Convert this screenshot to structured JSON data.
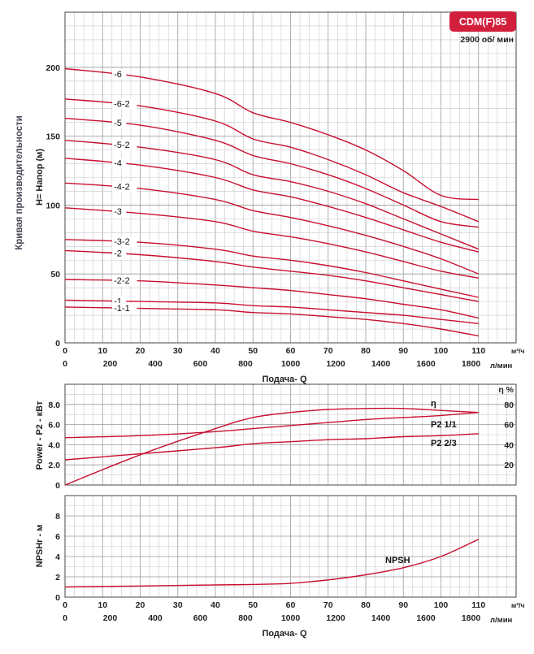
{
  "badge": {
    "model": "CDM(F)85",
    "speed": "2900 об/ мин",
    "color": "#d21f3c"
  },
  "side_title": "Кривая производительности",
  "flow_unit_m3h": "м³/ч",
  "flow_unit_lmin": "л/мин",
  "chart_data": [
    {
      "id": "head",
      "type": "line",
      "ylabel": "H= Напор (м)",
      "xlabel": "Подача- Q",
      "xlim": [
        0,
        110
      ],
      "ylim": [
        0,
        240
      ],
      "grid": true,
      "yticks": [
        0,
        50,
        100,
        150,
        200
      ],
      "x_ticks_m3h": [
        0,
        10,
        20,
        30,
        40,
        50,
        60,
        70,
        80,
        90,
        100,
        110
      ],
      "x_ticks_lmin": [
        0,
        200,
        400,
        600,
        800,
        1000,
        1200,
        1400,
        1600,
        1800
      ],
      "series": [
        {
          "name": "-6",
          "x": [
            0,
            20,
            40,
            50,
            60,
            70,
            80,
            90,
            100,
            110
          ],
          "y": [
            199,
            193,
            181,
            167,
            160,
            151,
            140,
            125,
            107,
            104
          ]
        },
        {
          "name": "-6-2",
          "x": [
            0,
            20,
            40,
            50,
            60,
            70,
            80,
            90,
            100,
            110
          ],
          "y": [
            177,
            172,
            161,
            148,
            142,
            133,
            122,
            109,
            99,
            88
          ]
        },
        {
          "name": "-5",
          "x": [
            0,
            20,
            40,
            50,
            60,
            70,
            80,
            90,
            100,
            110
          ],
          "y": [
            163,
            158,
            147,
            136,
            130,
            122,
            112,
            100,
            88,
            84
          ]
        },
        {
          "name": "-5-2",
          "x": [
            0,
            20,
            40,
            50,
            60,
            70,
            80,
            90,
            100,
            110
          ],
          "y": [
            147,
            142,
            133,
            122,
            117,
            110,
            101,
            90,
            79,
            68
          ]
        },
        {
          "name": "-4",
          "x": [
            0,
            20,
            40,
            50,
            60,
            70,
            80,
            90,
            100,
            110
          ],
          "y": [
            134,
            129,
            120,
            111,
            106,
            99,
            91,
            82,
            73,
            66
          ]
        },
        {
          "name": "-4-2",
          "x": [
            0,
            20,
            40,
            50,
            60,
            70,
            80,
            90,
            100,
            110
          ],
          "y": [
            116,
            112,
            104,
            96,
            91,
            85,
            78,
            70,
            61,
            50
          ]
        },
        {
          "name": "-3",
          "x": [
            0,
            20,
            40,
            50,
            60,
            70,
            80,
            90,
            100,
            110
          ],
          "y": [
            98,
            94,
            88,
            81,
            77,
            72,
            66,
            59,
            52,
            47
          ]
        },
        {
          "name": "-3-2",
          "x": [
            0,
            20,
            40,
            50,
            60,
            70,
            80,
            90,
            100,
            110
          ],
          "y": [
            75,
            73,
            68,
            63,
            60,
            56,
            51,
            45,
            39,
            33
          ]
        },
        {
          "name": "-2",
          "x": [
            0,
            20,
            40,
            50,
            60,
            70,
            80,
            90,
            100,
            110
          ],
          "y": [
            67,
            64,
            59,
            55,
            52,
            49,
            45,
            40,
            35,
            30
          ]
        },
        {
          "name": "-2-2",
          "x": [
            0,
            20,
            40,
            50,
            60,
            70,
            80,
            90,
            100,
            110
          ],
          "y": [
            46,
            45,
            42,
            40,
            38,
            35,
            32,
            28,
            24,
            18
          ]
        },
        {
          "name": "-1",
          "x": [
            0,
            20,
            40,
            50,
            60,
            70,
            80,
            90,
            100,
            110
          ],
          "y": [
            31,
            30,
            29,
            27,
            26,
            24,
            22,
            20,
            17,
            14
          ]
        },
        {
          "name": "-1-1",
          "x": [
            0,
            20,
            40,
            50,
            60,
            70,
            80,
            90,
            100,
            110
          ],
          "y": [
            26,
            25,
            24,
            22,
            21,
            19,
            17,
            14,
            10,
            5
          ]
        }
      ]
    },
    {
      "id": "power",
      "type": "line",
      "ylabel": "Power - P2 - кВт",
      "y2label": "η %",
      "xlim": [
        0,
        110
      ],
      "ylim": [
        0,
        8
      ],
      "y2lim": [
        0,
        80
      ],
      "grid": true,
      "yticks": [
        0,
        2.0,
        4.0,
        6.0,
        8.0
      ],
      "ytick_labels": [
        "0",
        "2.0",
        "4.0",
        "6.0",
        "8.0"
      ],
      "y2ticks": [
        20,
        40,
        60,
        80
      ],
      "series": [
        {
          "name": "η",
          "axis": "y2",
          "x": [
            0,
            20,
            40,
            50,
            60,
            70,
            80,
            90,
            100,
            110
          ],
          "y": [
            0,
            30,
            56,
            67,
            72,
            75,
            76,
            76,
            74,
            72
          ]
        },
        {
          "name": "P2 1/1",
          "axis": "y",
          "x": [
            0,
            20,
            40,
            50,
            60,
            70,
            80,
            90,
            100,
            110
          ],
          "y": [
            4.7,
            4.9,
            5.3,
            5.6,
            5.9,
            6.2,
            6.5,
            6.7,
            6.9,
            7.2
          ]
        },
        {
          "name": "P2 2/3",
          "axis": "y",
          "x": [
            0,
            20,
            40,
            50,
            60,
            70,
            80,
            90,
            100,
            110
          ],
          "y": [
            2.5,
            3.1,
            3.7,
            4.1,
            4.3,
            4.5,
            4.6,
            4.8,
            4.9,
            5.1
          ]
        }
      ]
    },
    {
      "id": "npsh",
      "type": "line",
      "ylabel": "NPSHr - м",
      "xlabel": "Подача- Q",
      "xlim": [
        0,
        110
      ],
      "ylim": [
        0,
        10
      ],
      "grid": true,
      "yticks": [
        0,
        2,
        4,
        6,
        8
      ],
      "x_ticks_m3h": [
        0,
        10,
        20,
        30,
        40,
        50,
        60,
        70,
        80,
        90,
        100,
        110
      ],
      "x_ticks_lmin": [
        0,
        200,
        400,
        600,
        800,
        1000,
        1200,
        1400,
        1600,
        1800
      ],
      "series": [
        {
          "name": "NPSH",
          "x": [
            0,
            20,
            40,
            50,
            60,
            70,
            80,
            90,
            100,
            110
          ],
          "y": [
            1.0,
            1.1,
            1.2,
            1.25,
            1.35,
            1.7,
            2.2,
            2.9,
            4.0,
            5.7
          ]
        }
      ]
    }
  ]
}
